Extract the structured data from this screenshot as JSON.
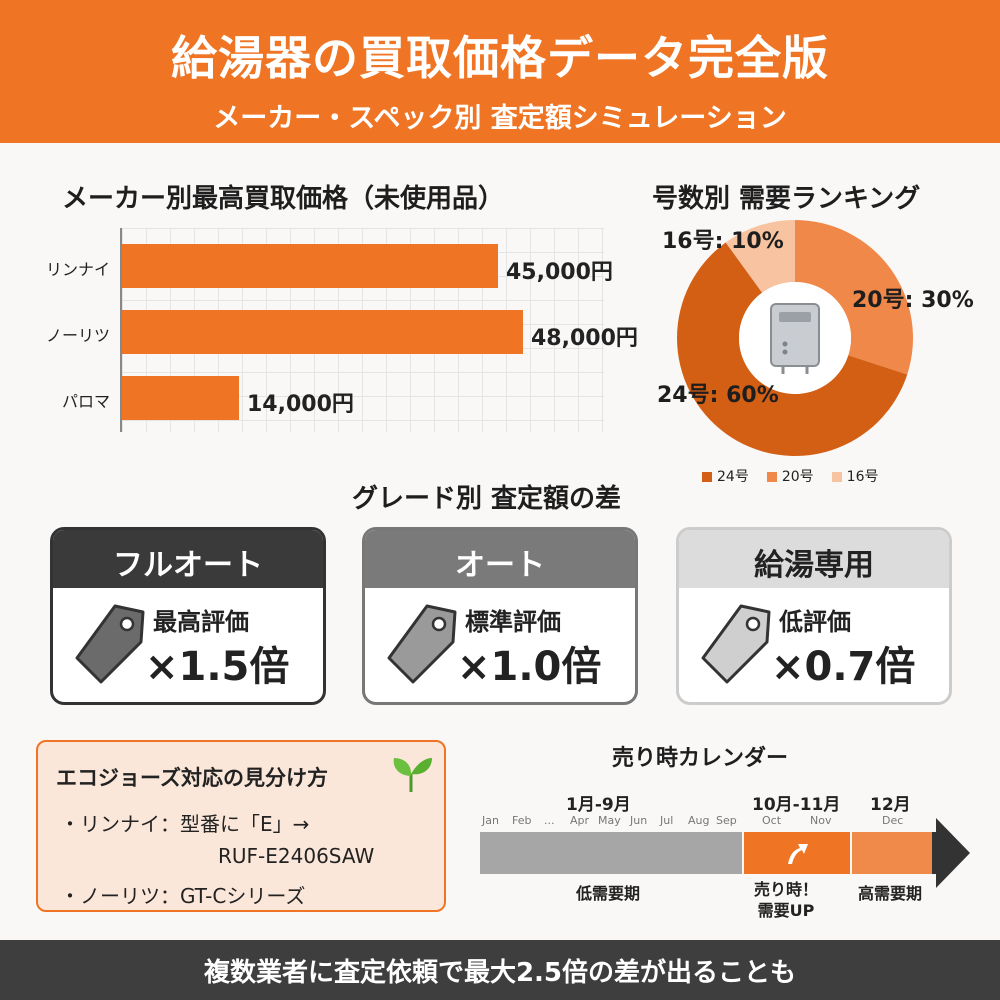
{
  "header": {
    "title": "給湯器の買取価格データ完全版",
    "subtitle": "メーカー・スペック別 査定額シミュレーション"
  },
  "colors": {
    "accent": "#ef7424",
    "dark_orange": "#d35f14",
    "mid_orange": "#f0884a",
    "light_orange": "#f8c3a0",
    "dark_gray": "#3e3e3e"
  },
  "chart_data": [
    {
      "type": "bar",
      "orientation": "horizontal",
      "title": "メーカー別最高買取価格（未使用品）",
      "categories": [
        "リンナイ",
        "ノーリツ",
        "パロマ"
      ],
      "values": [
        45000,
        48000,
        14000
      ],
      "value_labels": [
        "45,000円",
        "48,000円",
        "14,000円"
      ],
      "xlim": [
        0,
        58000
      ],
      "grid": true
    },
    {
      "type": "pie",
      "style": "donut",
      "title": "号数別 需要ランキング",
      "categories": [
        "24号",
        "20号",
        "16号"
      ],
      "values": [
        60,
        30,
        10
      ],
      "slice_labels": [
        "24号: 60%",
        "20号: 30%",
        "16号: 10%"
      ],
      "colors": [
        "#d35f14",
        "#f0884a",
        "#f8c3a0"
      ],
      "legend": [
        "24号",
        "20号",
        "16号"
      ],
      "legend_position": "bottom",
      "center_icon": "water-heater-icon"
    }
  ],
  "grade": {
    "title": "グレード別 査定額の差",
    "cards": [
      {
        "name": "フルオート",
        "label": "最高評価",
        "multiplier": "×1.5倍",
        "value": 1.5,
        "head_bg": "#3a3a3a",
        "head_fg": "#ffffff",
        "tag_color": "#6b6b6b",
        "border": "#333333"
      },
      {
        "name": "オート",
        "label": "標準評価",
        "multiplier": "×1.0倍",
        "value": 1.0,
        "head_bg": "#7a7a7a",
        "head_fg": "#ffffff",
        "tag_color": "#9a9a9a",
        "border": "#777777"
      },
      {
        "name": "給湯専用",
        "label": "低評価",
        "multiplier": "×0.7倍",
        "value": 0.7,
        "head_bg": "#dcdcdc",
        "head_fg": "#222222",
        "tag_color": "#cfcfcf",
        "border": "#cccccc"
      }
    ]
  },
  "eco": {
    "title": "エコジョーズ対応の見分け方",
    "icon": "sprout-icon",
    "lines": [
      "・リンナイ：型番に「E」→",
      "RUF-E2406SAW",
      "・ノーリツ：GT-Cシリーズ"
    ]
  },
  "calendar": {
    "title": "売り時カレンダー",
    "periods": [
      {
        "range": "1月-9月",
        "label": "低需要期",
        "months": [
          "Jan",
          "Feb",
          "...",
          "Apr",
          "May",
          "Jun",
          "Jul",
          "Aug",
          "Sep"
        ]
      },
      {
        "range": "10月-11月",
        "label": "売り時！\n需要UP",
        "months": [
          "Oct",
          "Nov"
        ]
      },
      {
        "range": "12月",
        "label": "高需要期",
        "months": [
          "Dec"
        ]
      }
    ]
  },
  "footer": {
    "text": "複数業者に査定依頼で最大2.5倍の差が出ることも"
  }
}
